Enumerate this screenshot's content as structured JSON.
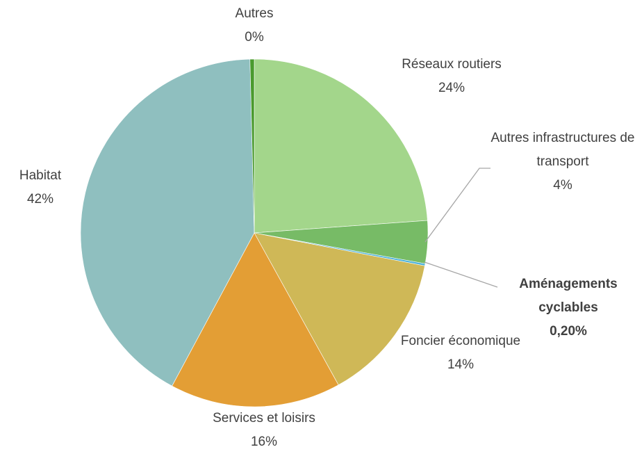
{
  "chart_data": {
    "type": "pie",
    "categories": [
      "Réseaux routiers",
      "Autres infrastructures de transport",
      "Aménagements cyclables",
      "Foncier économique",
      "Services et loisirs",
      "Habitat",
      "Autres"
    ],
    "values": [
      24,
      4,
      0.2,
      14,
      16,
      42,
      0.4
    ],
    "value_labels": [
      "24%",
      "4%",
      "0,20%",
      "14%",
      "16%",
      "42%",
      "0%"
    ],
    "colors": [
      "#a3d68b",
      "#77bb66",
      "#4fb3d9",
      "#cfb857",
      "#e39e35",
      "#8fbfbf",
      "#4a9a2e"
    ]
  }
}
